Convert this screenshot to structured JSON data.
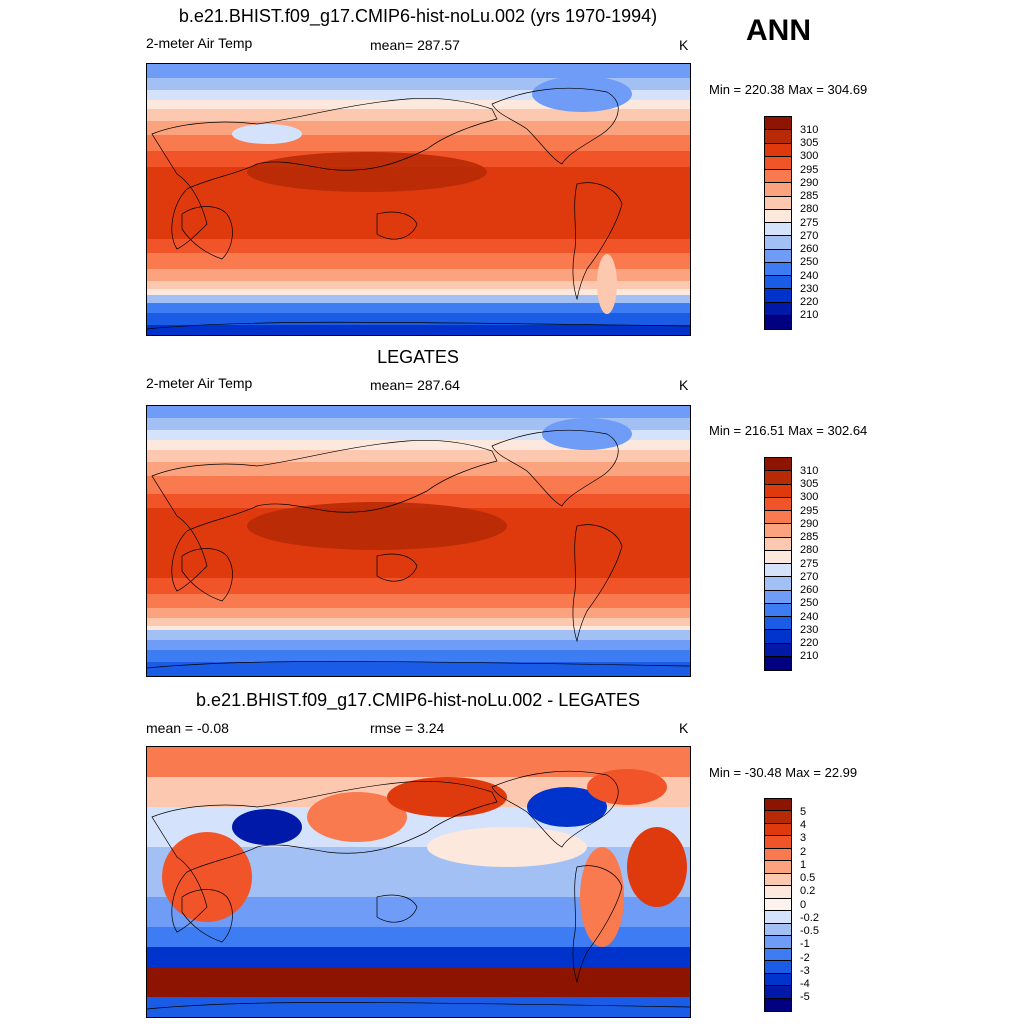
{
  "season": "ANN",
  "palettes": {
    "abs": [
      "#000080",
      "#0019a8",
      "#0033cc",
      "#1a5ce6",
      "#3d7cf2",
      "#6e9cf7",
      "#a3c0f5",
      "#d4e3fb",
      "#fde8de",
      "#fcc9b0",
      "#fba37f",
      "#f87a4e",
      "#f2542a",
      "#de3a0e",
      "#b72a06",
      "#8c1400"
    ],
    "diff": [
      "#000080",
      "#0019a8",
      "#0033cc",
      "#1a5ce6",
      "#3d7cf2",
      "#6e9cf7",
      "#a3c0f5",
      "#d4e3fb",
      "#fdf2ee",
      "#fde8de",
      "#fcc9b0",
      "#fba37f",
      "#f87a4e",
      "#f2542a",
      "#de3a0e",
      "#b72a06",
      "#8c1400"
    ]
  },
  "panels": [
    {
      "title": "b.e21.BHIST.f09_g17.CMIP6-hist-noLu.002 (yrs 1970-1994)",
      "left_label": "2-meter Air Temp",
      "center_label": "mean= 287.57",
      "right_label": "K",
      "minmax": "Min = 220.38 Max = 304.69",
      "colorbar_labels": [
        "310",
        "305",
        "300",
        "295",
        "290",
        "285",
        "280",
        "275",
        "270",
        "260",
        "250",
        "240",
        "230",
        "220",
        "210"
      ]
    },
    {
      "title": "LEGATES",
      "left_label": "2-meter Air Temp",
      "center_label": "mean= 287.64",
      "right_label": "K",
      "minmax": "Min = 216.51 Max = 302.64",
      "colorbar_labels": [
        "310",
        "305",
        "300",
        "295",
        "290",
        "285",
        "280",
        "275",
        "270",
        "260",
        "250",
        "240",
        "230",
        "220",
        "210"
      ]
    },
    {
      "title": "b.e21.BHIST.f09_g17.CMIP6-hist-noLu.002 - LEGATES",
      "left_label": "mean =  -0.08",
      "center_label": "rmse =   3.24",
      "right_label": "K",
      "minmax": "Min = -30.48 Max =  22.99",
      "colorbar_labels": [
        "5",
        "4",
        "3",
        "2",
        "1",
        "0.5",
        "0.2",
        "0",
        "-0.2",
        "-0.5",
        "-1",
        "-2",
        "-3",
        "-4",
        "-5"
      ]
    }
  ]
}
